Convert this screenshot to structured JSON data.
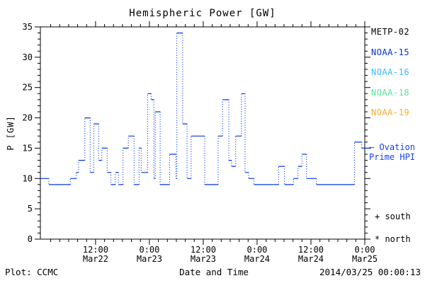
{
  "title": "Hemispheric Power [GW]",
  "y_axis": {
    "label": "P [GW]",
    "range": [
      0,
      35
    ],
    "major_ticks": [
      0,
      5,
      10,
      15,
      20,
      25,
      30,
      35
    ],
    "minor_step": 1
  },
  "x_axis": {
    "label": "Date and Time",
    "range_hours": [
      -0.3,
      72
    ],
    "minor_step_hours": 2,
    "major_ticks": [
      {
        "hour": 12,
        "time": "12:00",
        "date": "Mar22"
      },
      {
        "hour": 24,
        "time": "0:00",
        "date": "Mar23"
      },
      {
        "hour": 36,
        "time": "12:00",
        "date": "Mar23"
      },
      {
        "hour": 48,
        "time": "0:00",
        "date": "Mar24"
      },
      {
        "hour": 60,
        "time": "12:00",
        "date": "Mar24"
      },
      {
        "hour": 72,
        "time": "0:00",
        "date": "Mar25"
      }
    ]
  },
  "legend": {
    "items": [
      {
        "label": "METP-02",
        "color": "#000000"
      },
      {
        "label": "NOAA-15",
        "color": "#0033cc"
      },
      {
        "label": "NOAA-16",
        "color": "#33bbff"
      },
      {
        "label": "NOAA-18",
        "color": "#55e699"
      },
      {
        "label": "NOAA-19",
        "color": "#ffaa22"
      }
    ]
  },
  "series_label": {
    "line1": "— Ovation",
    "line2": "Prime HPI",
    "color": "#1a43e8"
  },
  "hemisphere_markers": {
    "south": "+ south",
    "north": "* north"
  },
  "footer": {
    "left": "Plot: CCMC",
    "center": "Date and Time",
    "right": "2014/03/25 00:00:13"
  },
  "chart_data": {
    "type": "line",
    "subtype": "step-post",
    "title": "Hemispheric Power [GW]",
    "xlabel": "Date and Time",
    "ylabel": "P [GW]",
    "ylim": [
      0,
      35
    ],
    "xlim_hours": [
      -0.3,
      72
    ],
    "x_unit": "hours (0 = Mar 22 00:00, ticks every 12 h, minor every 2 h)",
    "grid": false,
    "legend_position": "right",
    "line_style": "blue dotted step trace (solid horizontals, dotted verticals)",
    "series": [
      {
        "name": "Ovation Prime HPI",
        "color": "#0038e0",
        "steps_hour_gw": [
          [
            -0.3,
            10
          ],
          [
            1.6,
            9
          ],
          [
            6.4,
            10
          ],
          [
            7.7,
            11
          ],
          [
            8.2,
            13
          ],
          [
            9.6,
            20
          ],
          [
            10.8,
            11
          ],
          [
            11.6,
            19
          ],
          [
            12.7,
            13
          ],
          [
            13.4,
            15
          ],
          [
            14.6,
            11
          ],
          [
            15.4,
            9
          ],
          [
            16.4,
            11
          ],
          [
            17.1,
            9
          ],
          [
            18.1,
            15
          ],
          [
            19.3,
            17
          ],
          [
            20.6,
            9
          ],
          [
            21.7,
            15
          ],
          [
            22.2,
            11
          ],
          [
            23.6,
            24
          ],
          [
            24.4,
            23
          ],
          [
            25.0,
            10
          ],
          [
            25.3,
            21
          ],
          [
            26.4,
            9
          ],
          [
            28.5,
            14
          ],
          [
            29.9,
            10
          ],
          [
            30.1,
            34
          ],
          [
            31.4,
            19
          ],
          [
            32.4,
            10
          ],
          [
            33.3,
            17
          ],
          [
            36.3,
            9
          ],
          [
            39.3,
            17
          ],
          [
            40.3,
            23
          ],
          [
            41.7,
            13
          ],
          [
            42.3,
            12
          ],
          [
            43.2,
            17
          ],
          [
            44.5,
            24
          ],
          [
            45.3,
            11
          ],
          [
            46.1,
            10
          ],
          [
            47.3,
            9
          ],
          [
            52.8,
            12
          ],
          [
            54.1,
            9
          ],
          [
            56.1,
            10
          ],
          [
            57.1,
            12
          ],
          [
            58.0,
            14
          ],
          [
            59.0,
            10
          ],
          [
            61.2,
            9
          ],
          [
            69.7,
            16
          ],
          [
            71.3,
            15
          ]
        ]
      }
    ]
  }
}
